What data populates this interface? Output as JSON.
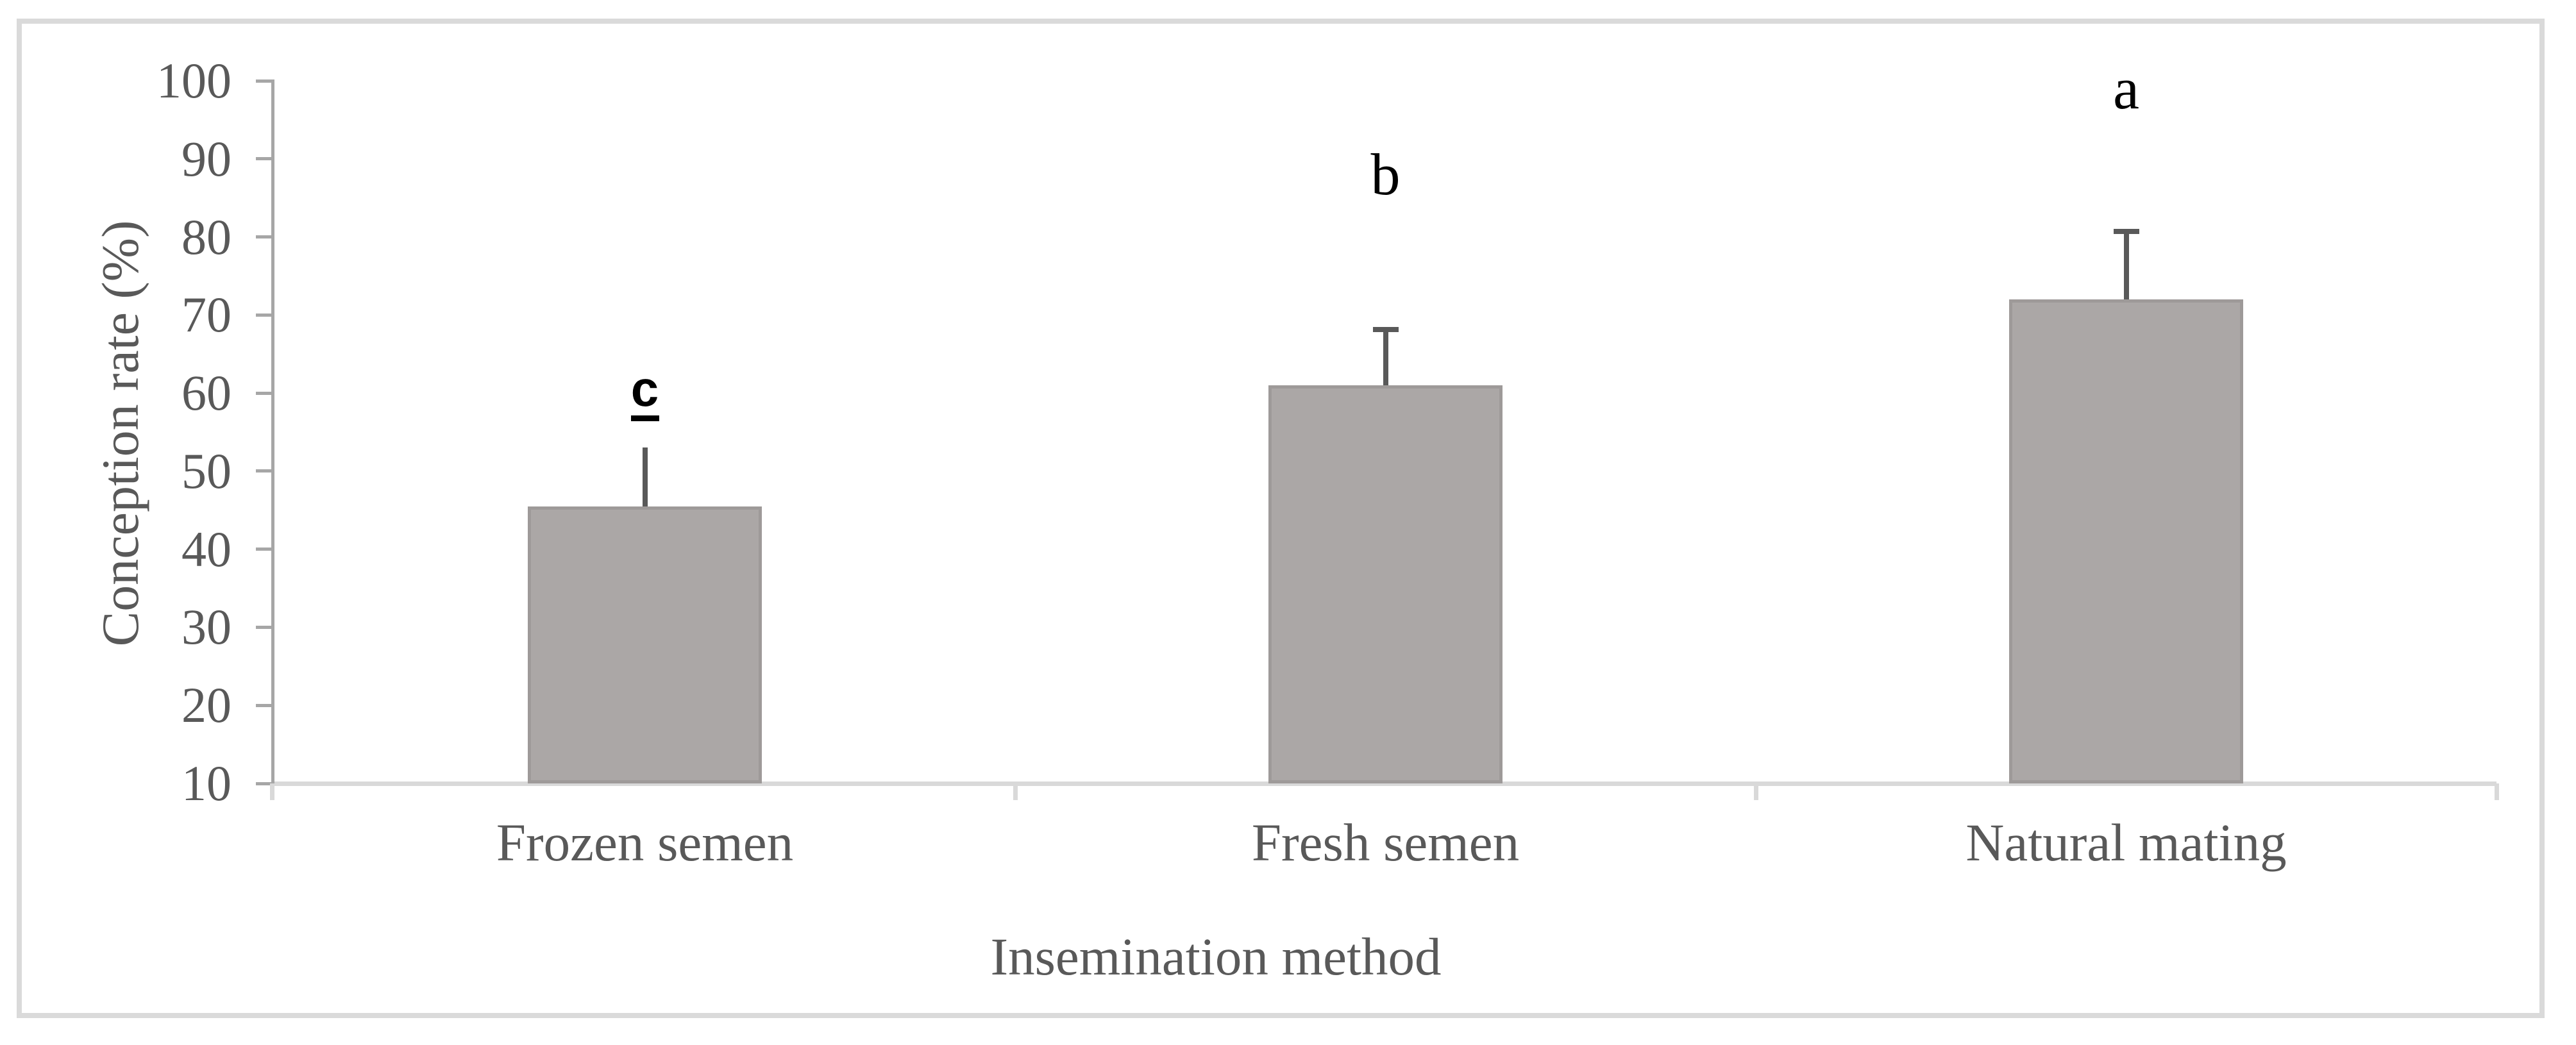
{
  "figure": {
    "frame_color": "#dadada",
    "background": "#ffffff"
  },
  "chart_data": {
    "type": "bar",
    "title": "",
    "xlabel": "Insemination method",
    "ylabel": "Conception rate (%)",
    "categories": [
      "Frozen semen",
      "Fresh semen",
      "Natural mating"
    ],
    "values": [
      45.5,
      61,
      72
    ],
    "error_bar_tops": [
      53,
      68.5,
      81
    ],
    "error_bar_caps": [
      false,
      true,
      true
    ],
    "sig_letters": [
      {
        "text": "c",
        "underlined": true,
        "baseline_value": 58
      },
      {
        "text": "b",
        "underlined": false,
        "baseline_value": 85
      },
      {
        "text": "a",
        "underlined": false,
        "baseline_value": 96
      }
    ],
    "ylim": [
      10,
      100
    ],
    "yticks": [
      10,
      20,
      30,
      40,
      50,
      60,
      70,
      80,
      90,
      100
    ],
    "grid": false,
    "legend": null,
    "bar_fill": "#aba7a6",
    "bar_border": "#9e9a99",
    "error_color": "#595959",
    "axis_line_color": "#a6a6a6",
    "baseline_color": "#d9d9d9",
    "label_color": "#595959",
    "letter_color": "#000000"
  }
}
